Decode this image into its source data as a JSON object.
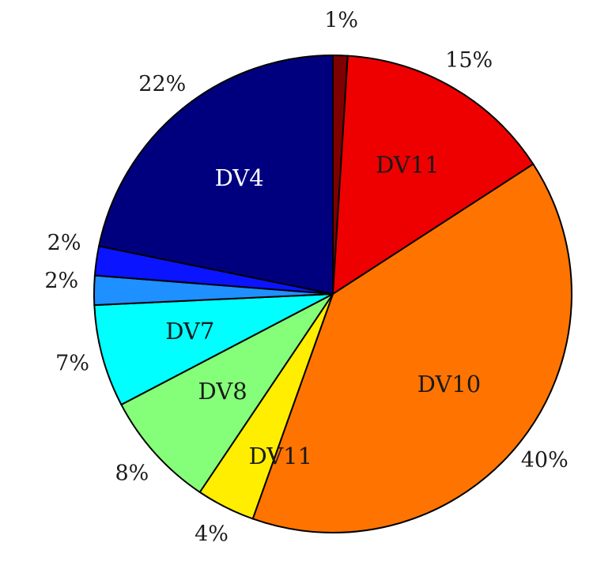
{
  "chart_data": {
    "type": "pie",
    "direction": "clockwise",
    "start": "top",
    "slices": [
      {
        "label": "",
        "value": 1,
        "pct_label": "1%",
        "color": "#7f0000",
        "label_color": "#1a1a1a"
      },
      {
        "label": "DV11",
        "value": 15,
        "pct_label": "15%",
        "color": "#ee0000",
        "label_color": "#1a1a1a"
      },
      {
        "label": "DV10",
        "value": 40,
        "pct_label": "40%",
        "color": "#ff7400",
        "label_color": "#1a1a1a"
      },
      {
        "label": "DV11",
        "value": 4,
        "pct_label": "4%",
        "color": "#ffee00",
        "label_color": "#1a1a1a"
      },
      {
        "label": "DV8",
        "value": 8,
        "pct_label": "8%",
        "color": "#85ff7a",
        "label_color": "#1a1a1a"
      },
      {
        "label": "DV7",
        "value": 7,
        "pct_label": "7%",
        "color": "#00ffff",
        "label_color": "#1a1a1a"
      },
      {
        "label": "",
        "value": 2,
        "pct_label": "2%",
        "color": "#1e90ff",
        "label_color": "#1a1a1a"
      },
      {
        "label": "",
        "value": 2,
        "pct_label": "2%",
        "color": "#0a14ff",
        "label_color": "#1a1a1a"
      },
      {
        "label": "DV4",
        "value": 22,
        "pct_label": "22%",
        "color": "#00007f",
        "label_color": "#ffffff"
      }
    ]
  }
}
